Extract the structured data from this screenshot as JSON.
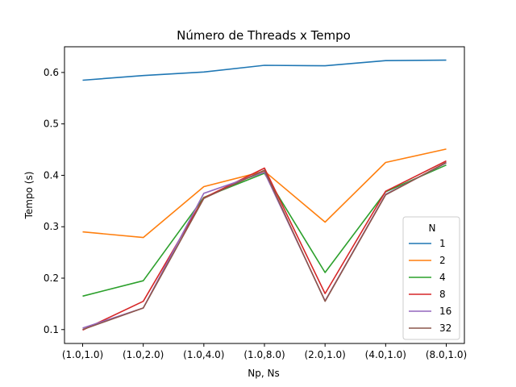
{
  "chart_data": {
    "type": "line",
    "title": "Número de Threads x Tempo",
    "xlabel": "Np, Ns",
    "ylabel": "Tempo (s)",
    "categories": [
      "(1.0,1.0)",
      "(1.0,2.0)",
      "(1.0,4.0)",
      "(1.0,8.0)",
      "(2.0,1.0)",
      "(4.0,1.0)",
      "(8.0,1.0)"
    ],
    "yticks": [
      0.1,
      0.2,
      0.3,
      0.4,
      0.5,
      0.6
    ],
    "ylim": [
      0.073,
      0.65
    ],
    "grid": false,
    "legend": {
      "title": "N",
      "placement": "lower-right"
    },
    "series": [
      {
        "name": "1",
        "color": "#1f77b4",
        "values": [
          0.585,
          0.594,
          0.601,
          0.614,
          0.613,
          0.623,
          0.624
        ]
      },
      {
        "name": "2",
        "color": "#ff7f0e",
        "values": [
          0.29,
          0.279,
          0.378,
          0.408,
          0.309,
          0.425,
          0.451
        ]
      },
      {
        "name": "4",
        "color": "#2ca02c",
        "values": [
          0.165,
          0.195,
          0.357,
          0.404,
          0.211,
          0.368,
          0.42
        ]
      },
      {
        "name": "8",
        "color": "#d62728",
        "values": [
          0.099,
          0.155,
          0.356,
          0.414,
          0.17,
          0.369,
          0.428
        ]
      },
      {
        "name": "16",
        "color": "#9467bd",
        "values": [
          0.103,
          0.142,
          0.365,
          0.406,
          0.156,
          0.363,
          0.424
        ]
      },
      {
        "name": "32",
        "color": "#8c564b",
        "values": [
          0.1,
          0.142,
          0.355,
          0.41,
          0.155,
          0.362,
          0.425
        ]
      }
    ]
  }
}
